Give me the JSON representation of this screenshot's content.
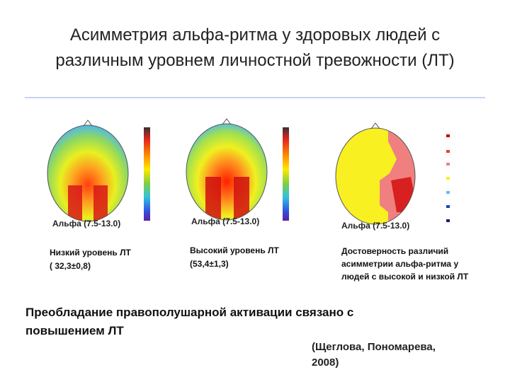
{
  "title_lines": [
    "Асимметрия альфа-ритма у здоровых людей с",
    "различным уровнем личностной тревожности (ЛТ)"
  ],
  "maps": [
    {
      "label": "Альфа (7.5-13.0)",
      "caption_lines": [
        "Низкий уровень ЛТ",
        "( 32,3±0,8)"
      ]
    },
    {
      "label": "Альфа (7.5-13.0)",
      "caption_lines": [
        "Высокий уровень ЛТ",
        "(53,4±1,3)"
      ]
    },
    {
      "label": "Альфа (7.5-13.0)",
      "caption_lines": [
        "Достоверность различий",
        "асимметрии альфа-ритма у",
        "людей с высокой и низкой ЛТ"
      ]
    }
  ],
  "conclusion_lines": [
    "Преобладание правополушарной активации связано с",
    "повышением ЛТ"
  ],
  "citation_lines": [
    "(Щеглова, Пономарева,",
    "2008)"
  ]
}
